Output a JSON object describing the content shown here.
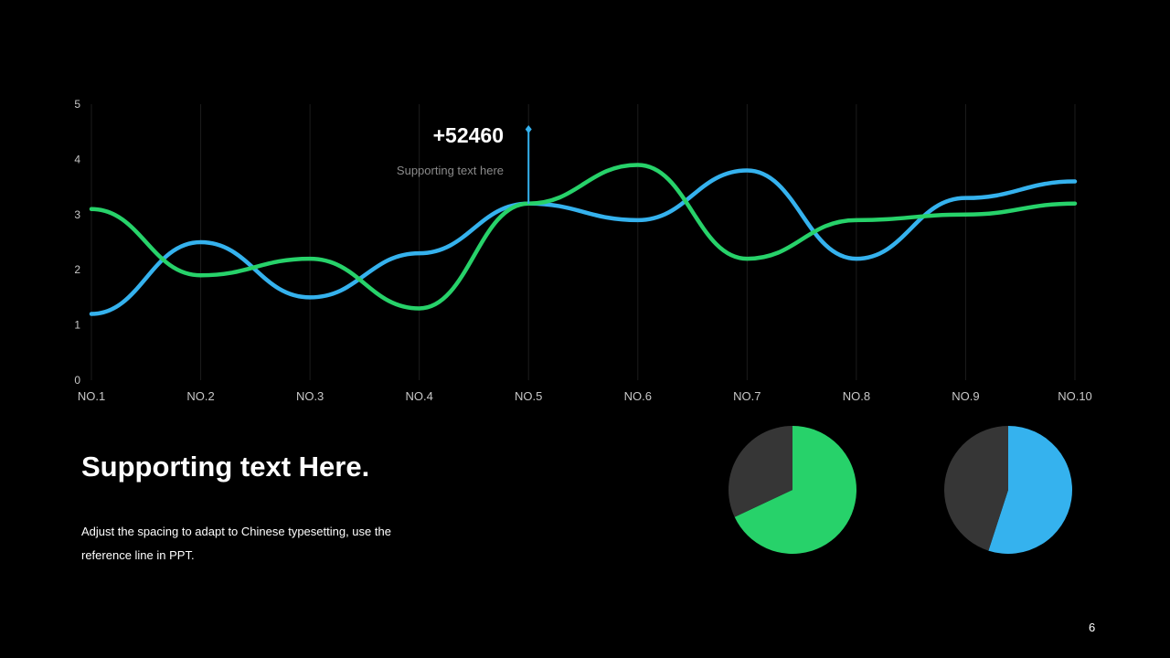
{
  "colors": {
    "background": "#000000",
    "green": "#27D26A",
    "blue": "#35B2EE",
    "pie_rest": "#363636",
    "grid": "#1c1c1c",
    "axis_text": "#c8c8c8",
    "muted_text": "#8a8a8a"
  },
  "callout": {
    "value": "+52460",
    "text": "Supporting text here",
    "category": "NO.5"
  },
  "headline": "Supporting text Here.",
  "body_text": "Adjust the spacing to adapt to Chinese typesetting, use the reference line in PPT.",
  "page_number": "6",
  "chart_data": [
    {
      "type": "line",
      "categories": [
        "NO.1",
        "NO.2",
        "NO.3",
        "NO.4",
        "NO.5",
        "NO.6",
        "NO.7",
        "NO.8",
        "NO.9",
        "NO.10"
      ],
      "series": [
        {
          "color": "#35B2EE",
          "values": [
            1.2,
            2.5,
            1.5,
            2.3,
            3.2,
            2.9,
            3.8,
            2.2,
            3.3,
            3.6
          ]
        },
        {
          "color": "#27D26A",
          "values": [
            3.1,
            1.9,
            2.2,
            1.3,
            3.2,
            3.9,
            2.2,
            2.9,
            3.0,
            3.2
          ]
        }
      ],
      "ylim": [
        0,
        5
      ],
      "yticks": [
        "0",
        "1",
        "2",
        "3",
        "4",
        "5"
      ],
      "grid": "vertical",
      "smooth": true,
      "xlabel": "",
      "ylabel": ""
    },
    {
      "type": "pie",
      "slices": [
        {
          "color": "#27D26A",
          "value": 0.68
        },
        {
          "color": "#363636",
          "value": 0.32
        }
      ]
    },
    {
      "type": "pie",
      "slices": [
        {
          "color": "#35B2EE",
          "value": 0.55
        },
        {
          "color": "#363636",
          "value": 0.45
        }
      ]
    }
  ]
}
